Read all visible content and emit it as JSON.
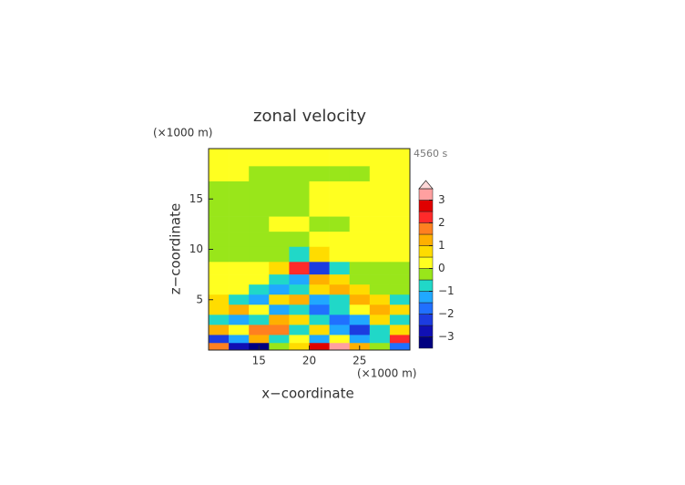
{
  "chart_data": {
    "type": "contourf",
    "title": "zonal velocity",
    "time_label": "4560 s",
    "x_label": "x−coordinate",
    "y_label": "z−coordinate",
    "x_unit": "(×1000 m)",
    "y_unit": "(×1000 m)",
    "xlim": [
      10,
      30
    ],
    "ylim": [
      0,
      20
    ],
    "xticks": [
      15,
      20,
      25
    ],
    "yticks": [
      5,
      10,
      15
    ],
    "x": [
      11,
      13,
      15,
      17,
      19,
      21,
      23,
      25,
      27,
      29
    ],
    "y": [
      19,
      17.5,
      16,
      14,
      12.5,
      11,
      9.5,
      8,
      7,
      6,
      5,
      4,
      3,
      2,
      1,
      0.4
    ],
    "z": [
      [
        0.2,
        0.2,
        0.2,
        0.2,
        0.2,
        0.2,
        0.2,
        0.2,
        0.2,
        0.2
      ],
      [
        0.2,
        0.2,
        -0.2,
        -0.2,
        -0.2,
        -0.2,
        -0.2,
        -0.2,
        0.2,
        0.2
      ],
      [
        -0.2,
        -0.2,
        -0.2,
        -0.2,
        -0.2,
        0.2,
        0.2,
        0.2,
        0.2,
        0.2
      ],
      [
        -0.2,
        -0.2,
        -0.2,
        -0.2,
        -0.2,
        0.2,
        0.2,
        0.2,
        0.2,
        0.2
      ],
      [
        -0.2,
        -0.2,
        -0.2,
        0.2,
        0.2,
        -0.2,
        -0.2,
        0.2,
        0.2,
        0.2
      ],
      [
        -0.2,
        -0.2,
        -0.2,
        -0.2,
        -0.2,
        0.2,
        0.2,
        0.2,
        0.2,
        0.2
      ],
      [
        -0.2,
        -0.2,
        -0.2,
        -0.3,
        -0.6,
        0.6,
        0.3,
        0.2,
        0.2,
        0.2
      ],
      [
        0.3,
        0.3,
        0.3,
        0.8,
        2.3,
        -2.3,
        -0.7,
        -0.2,
        -0.2,
        -0.2
      ],
      [
        0.2,
        0.2,
        0.2,
        -0.6,
        -1.2,
        1.2,
        0.6,
        -0.1,
        -0.1,
        -0.1
      ],
      [
        0.2,
        0.4,
        -0.8,
        -1.3,
        -0.6,
        0.6,
        1.3,
        0.8,
        -0.4,
        -0.2
      ],
      [
        0.6,
        -0.7,
        -1.2,
        0.7,
        1.2,
        -1.2,
        -0.7,
        1.2,
        0.7,
        -0.6
      ],
      [
        0.8,
        1.1,
        0.3,
        -1.3,
        -0.8,
        -1.6,
        -0.8,
        0.3,
        1.1,
        0.8
      ],
      [
        -0.6,
        -1.2,
        -0.8,
        1.3,
        0.6,
        -0.6,
        -1.6,
        -1.2,
        0.8,
        -0.6
      ],
      [
        1.2,
        0.4,
        1.6,
        1.8,
        -0.7,
        0.8,
        -1.4,
        -2.3,
        -1.0,
        0.6
      ],
      [
        -2.2,
        -1.3,
        1.2,
        -0.6,
        0.3,
        -1.3,
        0.4,
        -1.2,
        -0.6,
        2.1
      ],
      [
        1.6,
        -2.6,
        -3.2,
        -0.3,
        0.6,
        2.6,
        3.1,
        1.3,
        -0.4,
        -1.8
      ]
    ],
    "levels": [
      -3.5,
      -3,
      -2.5,
      -2,
      -1.5,
      -1,
      -0.5,
      0,
      0.5,
      1,
      1.5,
      2,
      2.5,
      3,
      3.5
    ],
    "colors": [
      "#000080",
      "#1010b4",
      "#1c3ce0",
      "#2070ff",
      "#20a8ff",
      "#20d8c8",
      "#99e61a",
      "#ffff20",
      "#ffdc00",
      "#ffb000",
      "#ff8020",
      "#ff2a2a",
      "#e00000",
      "#ffa0a0"
    ],
    "extend_color": "#ffd8d8",
    "colorbar_ticks": [
      {
        "value": -3,
        "label": "−3"
      },
      {
        "value": -2,
        "label": "−2"
      },
      {
        "value": -1,
        "label": "−1"
      },
      0,
      1,
      2,
      3
    ]
  }
}
